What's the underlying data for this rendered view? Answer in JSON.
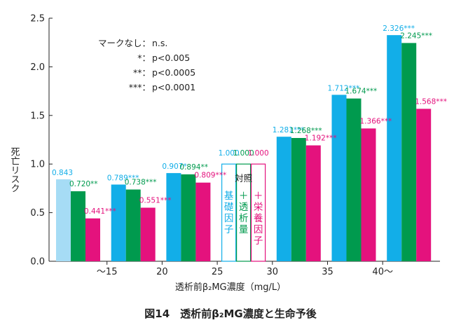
{
  "chart_data": {
    "type": "bar",
    "title": "図14　透析前β₂MG濃度と生命予後",
    "ylabel": "死亡リスク",
    "xlabel": "透析前β₂MG濃度（mg/L）",
    "ylim": [
      0,
      2.5
    ],
    "yticks": [
      "0.0",
      "0.5",
      "1.0",
      "1.5",
      "2.0",
      "2.5"
    ],
    "xticks": [
      "〜15",
      "20",
      "25",
      "30",
      "35",
      "40〜"
    ],
    "groups": [
      {
        "values": [
          0.843,
          0.72,
          0.441
        ],
        "labels": [
          "0.843",
          "0.720**",
          "0.441***"
        ],
        "light": true
      },
      {
        "values": [
          0.789,
          0.738,
          0.551
        ],
        "labels": [
          "0.789***",
          "0.738***",
          "0.551***"
        ]
      },
      {
        "values": [
          0.907,
          0.894,
          0.809
        ],
        "labels": [
          "0.907*",
          "0.894**",
          "0.809***"
        ]
      },
      {
        "values": [
          1.0,
          1.0,
          1.0
        ],
        "labels": [
          "1.000",
          "1.000",
          "1.000"
        ],
        "reference": true
      },
      {
        "values": [
          1.281,
          1.268,
          1.192
        ],
        "labels": [
          "1.281***",
          "1.268***",
          "1.192***"
        ]
      },
      {
        "values": [
          1.712,
          1.674,
          1.366
        ],
        "labels": [
          "1.712***",
          "1.674***",
          "1.366***"
        ]
      },
      {
        "values": [
          2.326,
          2.245,
          1.568
        ],
        "labels": [
          "2.326***",
          "2.245***",
          "1.568***"
        ]
      }
    ],
    "series": [
      {
        "color": "#12aee8",
        "light_color": "#a6dcf5",
        "ref_label": "基礎因子"
      },
      {
        "color": "#009a4e",
        "light_color": "#009a4e",
        "ref_label": "＋透析量"
      },
      {
        "color": "#e4127d",
        "light_color": "#e4127d",
        "ref_label": "＋栄養因子"
      }
    ],
    "reference_label": "対照",
    "legend": [
      {
        "mark": "マークなし：",
        "text": "n.s."
      },
      {
        "mark": "*：",
        "text": "p<0.005"
      },
      {
        "mark": "**：",
        "text": "p<0.0005"
      },
      {
        "mark": "***：",
        "text": "p<0.0001"
      }
    ],
    "grid": false
  }
}
